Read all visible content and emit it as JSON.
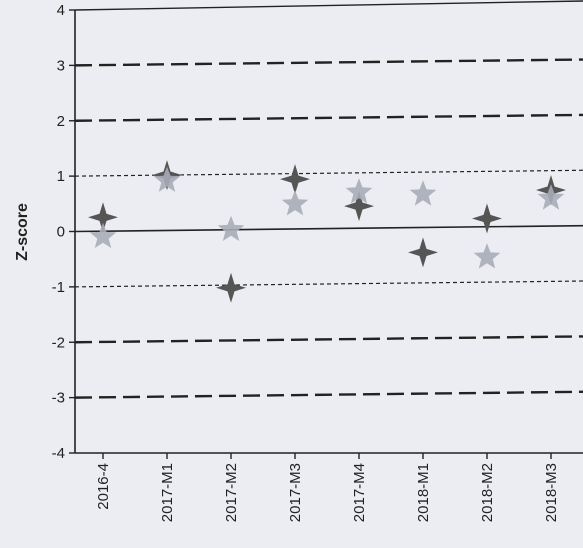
{
  "chart_data": {
    "type": "scatter",
    "title": "",
    "xlabel": "",
    "ylabel": "Z-score",
    "ylim": [
      -4,
      4
    ],
    "yticks": [
      4,
      3,
      2,
      1,
      0,
      -1,
      -2,
      -3,
      -4
    ],
    "categories": [
      "2016-4",
      "2017-M1",
      "2017-M2",
      "2017-M3",
      "2017-M4",
      "2018-M1",
      "2018-M2",
      "2018-M3"
    ],
    "series": [
      {
        "marker": "four-point-star",
        "color": "#555555",
        "values": [
          0.25,
          1.0,
          -1.05,
          0.9,
          0.4,
          -0.45,
          0.15,
          0.65
        ]
      },
      {
        "marker": "five-point-star",
        "color": "#a9acb8",
        "values": [
          -0.1,
          0.9,
          0.0,
          0.45,
          0.65,
          0.6,
          -0.55,
          0.5
        ]
      }
    ],
    "reference_lines": [
      {
        "y": 0,
        "style": "solid"
      },
      {
        "y": 1,
        "style": "dotted"
      },
      {
        "y": -1,
        "style": "dotted"
      },
      {
        "y": 2,
        "style": "dashed"
      },
      {
        "y": -2,
        "style": "dashed"
      },
      {
        "y": 3,
        "style": "dashed"
      },
      {
        "y": -3,
        "style": "dashed"
      }
    ],
    "grid": false,
    "legend": "none"
  }
}
